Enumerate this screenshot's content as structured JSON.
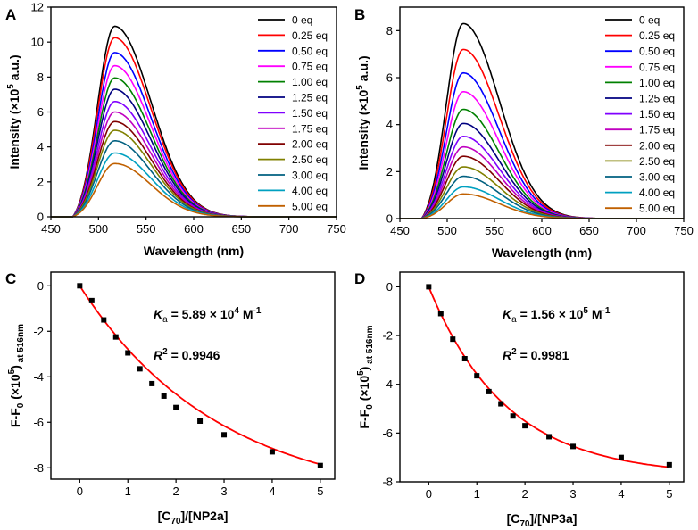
{
  "panel_labels": [
    "A",
    "B",
    "C",
    "D"
  ],
  "chart_data": [
    {
      "panel": "A",
      "type": "line",
      "xlabel": "Wavelength (nm)",
      "ylabel_main": "Intensity (×10",
      "ylabel_sup": "5",
      "ylabel_tail": " a.u.)",
      "xlim": [
        450,
        750
      ],
      "ylim": [
        0,
        12
      ],
      "xticks": [
        450,
        500,
        550,
        600,
        650,
        700,
        750
      ],
      "yticks": [
        0,
        2,
        4,
        6,
        8,
        10,
        12
      ],
      "peak_x": 517,
      "onset_x": 473,
      "width_left": 18,
      "width_right": 38,
      "series": [
        {
          "name": "0 eq",
          "color": "#000000",
          "peak": 10.9
        },
        {
          "name": "0.25 eq",
          "color": "#ff0000",
          "peak": 10.25
        },
        {
          "name": "0.50 eq",
          "color": "#0000ff",
          "peak": 9.4
        },
        {
          "name": "0.75 eq",
          "color": "#ff00ff",
          "peak": 8.65
        },
        {
          "name": "1.00 eq",
          "color": "#008000",
          "peak": 7.95
        },
        {
          "name": "1.25 eq",
          "color": "#000080",
          "peak": 7.3
        },
        {
          "name": "1.50 eq",
          "color": "#8000ff",
          "peak": 6.6
        },
        {
          "name": "1.75 eq",
          "color": "#c000c0",
          "peak": 6.0
        },
        {
          "name": "2.00 eq",
          "color": "#800000",
          "peak": 5.45
        },
        {
          "name": "2.50 eq",
          "color": "#808000",
          "peak": 4.95
        },
        {
          "name": "3.00 eq",
          "color": "#006080",
          "peak": 4.35
        },
        {
          "name": "4.00 eq",
          "color": "#00a0c0",
          "peak": 3.65
        },
        {
          "name": "5.00 eq",
          "color": "#c06000",
          "peak": 3.05
        }
      ]
    },
    {
      "panel": "B",
      "type": "line",
      "xlabel": "Wavelength (nm)",
      "ylabel_main": "Intensity (×10",
      "ylabel_sup": "5",
      "ylabel_tail": " a.u.)",
      "xlim": [
        450,
        750
      ],
      "ylim": [
        0,
        9
      ],
      "xticks": [
        450,
        500,
        550,
        600,
        650,
        700,
        750
      ],
      "yticks": [
        0,
        2,
        4,
        6,
        8
      ],
      "peak_x": 517,
      "onset_x": 473,
      "width_left": 18,
      "width_right": 38,
      "series": [
        {
          "name": "0 eq",
          "color": "#000000",
          "peak": 8.3
        },
        {
          "name": "0.25 eq",
          "color": "#ff0000",
          "peak": 7.2
        },
        {
          "name": "0.50 eq",
          "color": "#0000ff",
          "peak": 6.2
        },
        {
          "name": "0.75 eq",
          "color": "#ff00ff",
          "peak": 5.4
        },
        {
          "name": "1.00 eq",
          "color": "#008000",
          "peak": 4.65
        },
        {
          "name": "1.25 eq",
          "color": "#000080",
          "peak": 4.05
        },
        {
          "name": "1.50 eq",
          "color": "#8000ff",
          "peak": 3.5
        },
        {
          "name": "1.75 eq",
          "color": "#c000c0",
          "peak": 3.05
        },
        {
          "name": "2.00 eq",
          "color": "#800000",
          "peak": 2.65
        },
        {
          "name": "2.50 eq",
          "color": "#808000",
          "peak": 2.2
        },
        {
          "name": "3.00 eq",
          "color": "#006080",
          "peak": 1.8
        },
        {
          "name": "4.00 eq",
          "color": "#00a0c0",
          "peak": 1.35
        },
        {
          "name": "5.00 eq",
          "color": "#c06000",
          "peak": 1.05
        }
      ]
    },
    {
      "panel": "C",
      "type": "scatter",
      "xlabel_pre": "[C",
      "xlabel_sub": "70",
      "xlabel_post": "]/[NP2a]",
      "ylabel_main": "F-F",
      "ylabel_sub0": "0",
      "ylabel_mid": " (×10",
      "ylabel_sup": "5",
      "ylabel_close": ")",
      "ylabel_sub_tail": " at 516nm",
      "xlim": [
        -0.6,
        5.3
      ],
      "ylim": [
        -8.5,
        0.6
      ],
      "xticks": [
        0,
        1,
        2,
        3,
        4,
        5
      ],
      "yticks": [
        0,
        -2,
        -4,
        -6,
        -8
      ],
      "x": [
        0,
        0.25,
        0.5,
        0.75,
        1.0,
        1.25,
        1.5,
        1.75,
        2.0,
        2.5,
        3.0,
        4.0,
        5.0
      ],
      "y": [
        0,
        -0.65,
        -1.5,
        -2.25,
        -2.95,
        -3.65,
        -4.3,
        -4.85,
        -5.35,
        -5.95,
        -6.55,
        -7.3,
        -7.9
      ],
      "fit": {
        "color": "#ff0000",
        "A": -9.55,
        "k": 0.345
      },
      "ka_label": "K",
      "ka_sub": "a",
      "ka_value": " = 5.89 × 10",
      "ka_exp": "4",
      "ka_unit": " M",
      "ka_unit_exp": "-1",
      "r2_label": "R",
      "r2_exp": "2",
      "r2_value": " = 0.9946"
    },
    {
      "panel": "D",
      "type": "scatter",
      "xlabel_pre": "[C",
      "xlabel_sub": "70",
      "xlabel_post": "]/[NP3a]",
      "ylabel_main": "F-F",
      "ylabel_sub0": "0",
      "ylabel_mid": " (×10",
      "ylabel_sup": "5",
      "ylabel_close": ")",
      "ylabel_sub_tail": " at 516nm",
      "xlim": [
        -0.6,
        5.3
      ],
      "ylim": [
        -8.0,
        0.6
      ],
      "xticks": [
        0,
        1,
        2,
        3,
        4,
        5
      ],
      "yticks": [
        0,
        -2,
        -4,
        -6,
        -8
      ],
      "x": [
        0,
        0.25,
        0.5,
        0.75,
        1.0,
        1.25,
        1.5,
        1.75,
        2.0,
        2.5,
        3.0,
        4.0,
        5.0
      ],
      "y": [
        0,
        -1.1,
        -2.15,
        -2.95,
        -3.65,
        -4.3,
        -4.8,
        -5.3,
        -5.7,
        -6.15,
        -6.55,
        -7.0,
        -7.3
      ],
      "fit": {
        "color": "#ff0000",
        "A": -7.75,
        "k": 0.62
      },
      "ka_label": "K",
      "ka_sub": "a",
      "ka_value": " = 1.56 × 10",
      "ka_exp": "5",
      "ka_unit": " M",
      "ka_unit_exp": "-1",
      "r2_label": "R",
      "r2_exp": "2",
      "r2_value": " = 0.9981"
    }
  ]
}
